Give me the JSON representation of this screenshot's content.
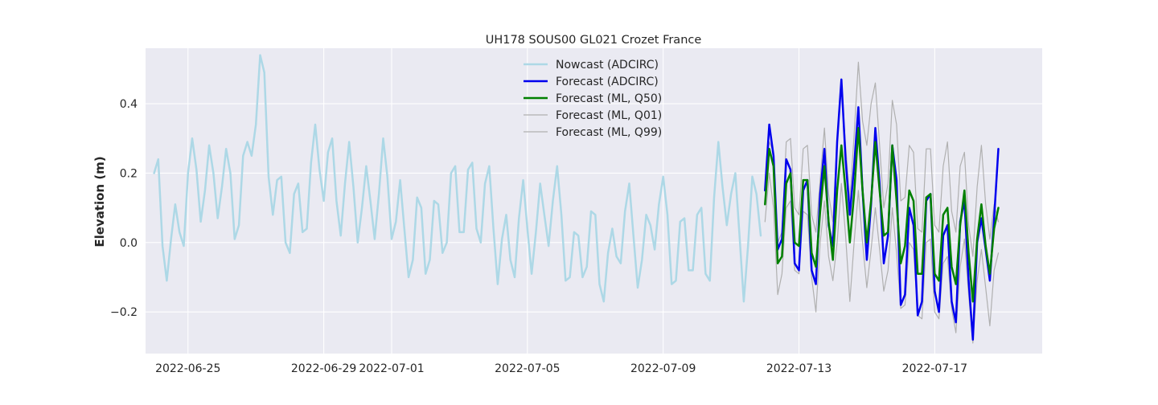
{
  "chart_data": {
    "type": "line",
    "title": "UH178 SOUS00 GL021 Crozet France",
    "xlabel": "",
    "ylabel": "Elevation (m)",
    "x_axis_type": "date",
    "xlim": [
      "2022-06-23T18:00",
      "2022-07-20T04:00"
    ],
    "ylim": [
      -0.32,
      0.56
    ],
    "x_ticks": [
      "2022-06-25",
      "2022-06-29",
      "2022-07-01",
      "2022-07-05",
      "2022-07-09",
      "2022-07-13",
      "2022-07-17"
    ],
    "x_tick_labels": [
      "2022-06-25",
      "2022-06-29",
      "2022-07-01",
      "2022-07-05",
      "2022-07-09",
      "2022-07-13",
      "2022-07-17"
    ],
    "y_ticks": [
      -0.2,
      0.0,
      0.2,
      0.4
    ],
    "y_tick_labels": [
      "−0.2",
      "0.0",
      "0.2",
      "0.4"
    ],
    "grid": true,
    "legend_position": "top-center",
    "background_color": "#eaeaf2",
    "series": [
      {
        "name": "Nowcast (ADCIRC)",
        "color": "#add8e6",
        "width": 2.5,
        "x_start": "2022-06-24T00:00",
        "step_hours": 3,
        "values": [
          0.2,
          0.24,
          -0.01,
          -0.11,
          0.01,
          0.11,
          0.03,
          -0.01,
          0.2,
          0.3,
          0.21,
          0.06,
          0.15,
          0.28,
          0.2,
          0.07,
          0.16,
          0.27,
          0.2,
          0.01,
          0.05,
          0.25,
          0.29,
          0.25,
          0.34,
          0.54,
          0.49,
          0.19,
          0.08,
          0.18,
          0.19,
          0.0,
          -0.03,
          0.14,
          0.17,
          0.03,
          0.04,
          0.23,
          0.34,
          0.21,
          0.12,
          0.26,
          0.3,
          0.12,
          0.02,
          0.17,
          0.29,
          0.16,
          0.0,
          0.1,
          0.22,
          0.12,
          0.01,
          0.14,
          0.3,
          0.19,
          0.01,
          0.06,
          0.18,
          0.04,
          -0.1,
          -0.05,
          0.13,
          0.1,
          -0.09,
          -0.05,
          0.12,
          0.11,
          -0.03,
          0.0,
          0.2,
          0.22,
          0.03,
          0.03,
          0.21,
          0.23,
          0.04,
          0.0,
          0.17,
          0.22,
          0.04,
          -0.12,
          0.01,
          0.08,
          -0.05,
          -0.1,
          0.07,
          0.18,
          0.04,
          -0.09,
          0.03,
          0.17,
          0.08,
          -0.01,
          0.12,
          0.22,
          0.08,
          -0.11,
          -0.1,
          0.03,
          0.02,
          -0.1,
          -0.07,
          0.09,
          0.08,
          -0.12,
          -0.17,
          -0.03,
          0.04,
          -0.04,
          -0.06,
          0.09,
          0.17,
          0.02,
          -0.13,
          -0.05,
          0.08,
          0.05,
          -0.02,
          0.11,
          0.19,
          0.08,
          -0.12,
          -0.11,
          0.06,
          0.07,
          -0.08,
          -0.08,
          0.08,
          0.1,
          -0.09,
          -0.11,
          0.13,
          0.29,
          0.16,
          0.05,
          0.14,
          0.2,
          0.02,
          -0.17,
          -0.01,
          0.19,
          0.14,
          0.02
        ]
      },
      {
        "name": "Forecast (ADCIRC)",
        "color": "#0000ee",
        "width": 2.5,
        "x_start": "2022-07-12T00:00",
        "step_hours": 3,
        "values": [
          0.15,
          0.34,
          0.25,
          -0.02,
          0.01,
          0.24,
          0.21,
          -0.06,
          -0.08,
          0.15,
          0.18,
          -0.08,
          -0.12,
          0.14,
          0.27,
          0.05,
          -0.01,
          0.29,
          0.47,
          0.24,
          0.08,
          0.22,
          0.39,
          0.15,
          -0.05,
          0.11,
          0.33,
          0.17,
          -0.06,
          0.02,
          0.28,
          0.18,
          -0.18,
          -0.15,
          0.1,
          0.05,
          -0.21,
          -0.17,
          0.12,
          0.14,
          -0.14,
          -0.2,
          0.02,
          0.05,
          -0.17,
          -0.23,
          0.06,
          0.12,
          -0.11,
          -0.28,
          0.0,
          0.07,
          -0.02,
          -0.11,
          0.07,
          0.27
        ]
      },
      {
        "name": "Forecast (ML, Q50)",
        "color": "#008000",
        "width": 2.5,
        "x_start": "2022-07-12T00:00",
        "step_hours": 3,
        "values": [
          0.11,
          0.27,
          0.22,
          -0.06,
          -0.04,
          0.17,
          0.2,
          0.0,
          -0.01,
          0.18,
          0.18,
          -0.03,
          -0.07,
          0.09,
          0.22,
          0.06,
          -0.05,
          0.15,
          0.28,
          0.15,
          0.0,
          0.14,
          0.33,
          0.15,
          0.0,
          0.12,
          0.29,
          0.15,
          0.02,
          0.03,
          0.28,
          0.12,
          -0.06,
          -0.01,
          0.15,
          0.12,
          -0.09,
          -0.09,
          0.13,
          0.14,
          -0.09,
          -0.11,
          0.08,
          0.1,
          -0.07,
          -0.12,
          0.05,
          0.15,
          -0.03,
          -0.17,
          0.01,
          0.11,
          -0.01,
          -0.09,
          0.04,
          0.1
        ]
      },
      {
        "name": "Forecast (ML, Q01)",
        "color": "#b0b0b0",
        "width": 1.2,
        "x_start": "2022-07-12T00:00",
        "step_hours": 3,
        "values": [
          0.06,
          0.2,
          0.1,
          -0.15,
          -0.09,
          0.1,
          0.12,
          -0.08,
          -0.09,
          0.09,
          0.08,
          -0.1,
          -0.2,
          0.0,
          0.12,
          -0.04,
          -0.11,
          0.0,
          0.17,
          0.02,
          -0.17,
          0.0,
          0.15,
          0.0,
          -0.13,
          -0.02,
          0.1,
          -0.02,
          -0.14,
          -0.08,
          0.1,
          -0.03,
          -0.19,
          -0.18,
          0.0,
          -0.02,
          -0.21,
          -0.22,
          0.0,
          0.01,
          -0.2,
          -0.22,
          -0.06,
          -0.04,
          -0.19,
          -0.26,
          -0.07,
          0.01,
          -0.15,
          -0.29,
          -0.11,
          -0.02,
          -0.13,
          -0.24,
          -0.08,
          -0.03
        ]
      },
      {
        "name": "Forecast (ML, Q99)",
        "color": "#b0b0b0",
        "width": 1.2,
        "x_start": "2022-07-12T00:00",
        "step_hours": 3,
        "values": [
          0.15,
          0.29,
          0.26,
          0.0,
          0.03,
          0.29,
          0.3,
          0.1,
          0.08,
          0.27,
          0.28,
          0.08,
          0.03,
          0.18,
          0.33,
          0.14,
          0.06,
          0.3,
          0.45,
          0.28,
          0.12,
          0.31,
          0.52,
          0.35,
          0.28,
          0.4,
          0.46,
          0.28,
          0.1,
          0.17,
          0.41,
          0.34,
          0.12,
          0.13,
          0.28,
          0.26,
          0.04,
          0.03,
          0.27,
          0.27,
          0.05,
          0.03,
          0.22,
          0.29,
          0.09,
          0.03,
          0.22,
          0.26,
          0.05,
          -0.04,
          0.16,
          0.28,
          0.11,
          0.01,
          0.11,
          0.06
        ]
      }
    ]
  }
}
